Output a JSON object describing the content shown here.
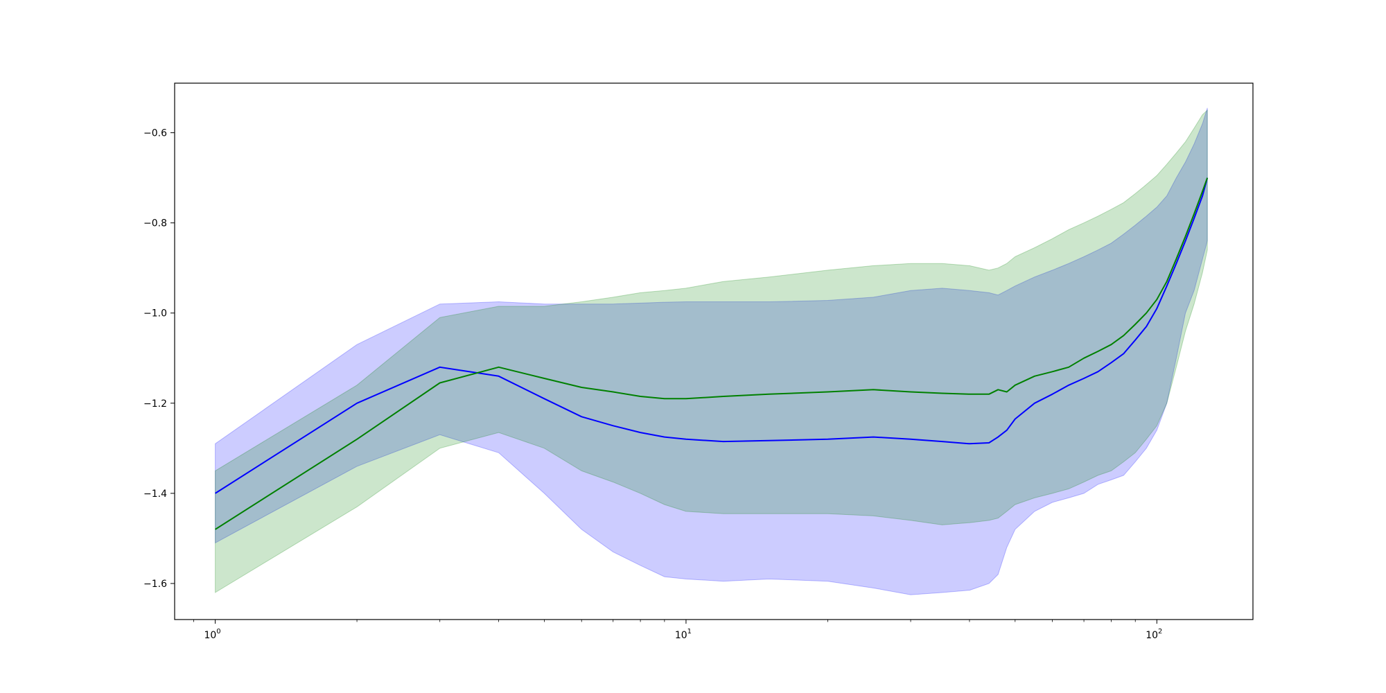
{
  "chart_data": {
    "type": "area",
    "title": "",
    "xlabel": "",
    "ylabel": "",
    "xscale": "log",
    "xlim": [
      0.82,
      160
    ],
    "ylim": [
      -1.68,
      -0.49
    ],
    "grid": false,
    "legend": "none",
    "x_ticks": [
      {
        "base": "10",
        "exp": "0",
        "value": 1
      },
      {
        "base": "10",
        "exp": "1",
        "value": 10
      },
      {
        "base": "10",
        "exp": "2",
        "value": 100
      }
    ],
    "y_ticks": [
      {
        "label": "−0.6",
        "value": -0.6
      },
      {
        "label": "−0.8",
        "value": -0.8
      },
      {
        "label": "−1.0",
        "value": -1.0
      },
      {
        "label": "−1.2",
        "value": -1.2
      },
      {
        "label": "−1.4",
        "value": -1.4
      },
      {
        "label": "−1.6",
        "value": -1.6
      }
    ],
    "series": [
      {
        "color": "#0000ff",
        "band_color": "#0000ff",
        "band_opacity": 0.2,
        "x": [
          1,
          2,
          3,
          4,
          5,
          6,
          7,
          8,
          9,
          10,
          12,
          15,
          20,
          25,
          30,
          35,
          40,
          44,
          46,
          48,
          50,
          55,
          60,
          65,
          70,
          75,
          80,
          85,
          90,
          95,
          100,
          105,
          110,
          115,
          120,
          125,
          128
        ],
        "mean": [
          -1.4,
          -1.2,
          -1.12,
          -1.14,
          -1.19,
          -1.23,
          -1.25,
          -1.265,
          -1.275,
          -1.28,
          -1.285,
          -1.283,
          -1.28,
          -1.275,
          -1.28,
          -1.285,
          -1.29,
          -1.288,
          -1.275,
          -1.26,
          -1.235,
          -1.2,
          -1.18,
          -1.16,
          -1.145,
          -1.13,
          -1.11,
          -1.09,
          -1.06,
          -1.03,
          -0.99,
          -0.94,
          -0.89,
          -0.84,
          -0.79,
          -0.74,
          -0.7
        ],
        "upper": [
          -1.29,
          -1.07,
          -0.98,
          -0.975,
          -0.98,
          -0.98,
          -0.98,
          -0.978,
          -0.976,
          -0.975,
          -0.975,
          -0.975,
          -0.972,
          -0.965,
          -0.95,
          -0.945,
          -0.95,
          -0.955,
          -0.96,
          -0.95,
          -0.94,
          -0.92,
          -0.905,
          -0.89,
          -0.875,
          -0.86,
          -0.845,
          -0.825,
          -0.805,
          -0.785,
          -0.765,
          -0.74,
          -0.7,
          -0.665,
          -0.625,
          -0.58,
          -0.545
        ],
        "lower": [
          -1.51,
          -1.34,
          -1.27,
          -1.31,
          -1.4,
          -1.48,
          -1.53,
          -1.56,
          -1.585,
          -1.59,
          -1.595,
          -1.59,
          -1.595,
          -1.61,
          -1.625,
          -1.62,
          -1.615,
          -1.6,
          -1.58,
          -1.52,
          -1.48,
          -1.44,
          -1.42,
          -1.41,
          -1.4,
          -1.38,
          -1.37,
          -1.36,
          -1.33,
          -1.3,
          -1.26,
          -1.2,
          -1.1,
          -1.0,
          -0.95,
          -0.88,
          -0.84
        ]
      },
      {
        "color": "#008000",
        "band_color": "#008000",
        "band_opacity": 0.2,
        "x": [
          1,
          2,
          3,
          4,
          5,
          6,
          7,
          8,
          9,
          10,
          12,
          15,
          20,
          25,
          30,
          35,
          40,
          44,
          46,
          48,
          50,
          55,
          60,
          65,
          70,
          75,
          80,
          85,
          90,
          95,
          100,
          105,
          110,
          115,
          120,
          125,
          128
        ],
        "mean": [
          -1.48,
          -1.28,
          -1.155,
          -1.12,
          -1.145,
          -1.165,
          -1.175,
          -1.185,
          -1.19,
          -1.19,
          -1.185,
          -1.18,
          -1.175,
          -1.17,
          -1.175,
          -1.178,
          -1.18,
          -1.18,
          -1.17,
          -1.175,
          -1.16,
          -1.14,
          -1.13,
          -1.12,
          -1.1,
          -1.085,
          -1.07,
          -1.05,
          -1.025,
          -1.0,
          -0.97,
          -0.93,
          -0.88,
          -0.83,
          -0.78,
          -0.73,
          -0.7
        ],
        "upper": [
          -1.35,
          -1.16,
          -1.01,
          -0.985,
          -0.985,
          -0.975,
          -0.965,
          -0.955,
          -0.95,
          -0.945,
          -0.93,
          -0.92,
          -0.905,
          -0.895,
          -0.89,
          -0.89,
          -0.895,
          -0.905,
          -0.9,
          -0.89,
          -0.875,
          -0.855,
          -0.835,
          -0.815,
          -0.8,
          -0.785,
          -0.77,
          -0.755,
          -0.735,
          -0.715,
          -0.695,
          -0.67,
          -0.645,
          -0.62,
          -0.59,
          -0.56,
          -0.55
        ],
        "lower": [
          -1.62,
          -1.43,
          -1.3,
          -1.265,
          -1.3,
          -1.35,
          -1.375,
          -1.4,
          -1.425,
          -1.44,
          -1.445,
          -1.445,
          -1.445,
          -1.45,
          -1.46,
          -1.47,
          -1.465,
          -1.46,
          -1.455,
          -1.44,
          -1.425,
          -1.41,
          -1.4,
          -1.39,
          -1.375,
          -1.36,
          -1.35,
          -1.33,
          -1.31,
          -1.28,
          -1.25,
          -1.2,
          -1.12,
          -1.04,
          -0.98,
          -0.91,
          -0.86
        ]
      }
    ]
  }
}
